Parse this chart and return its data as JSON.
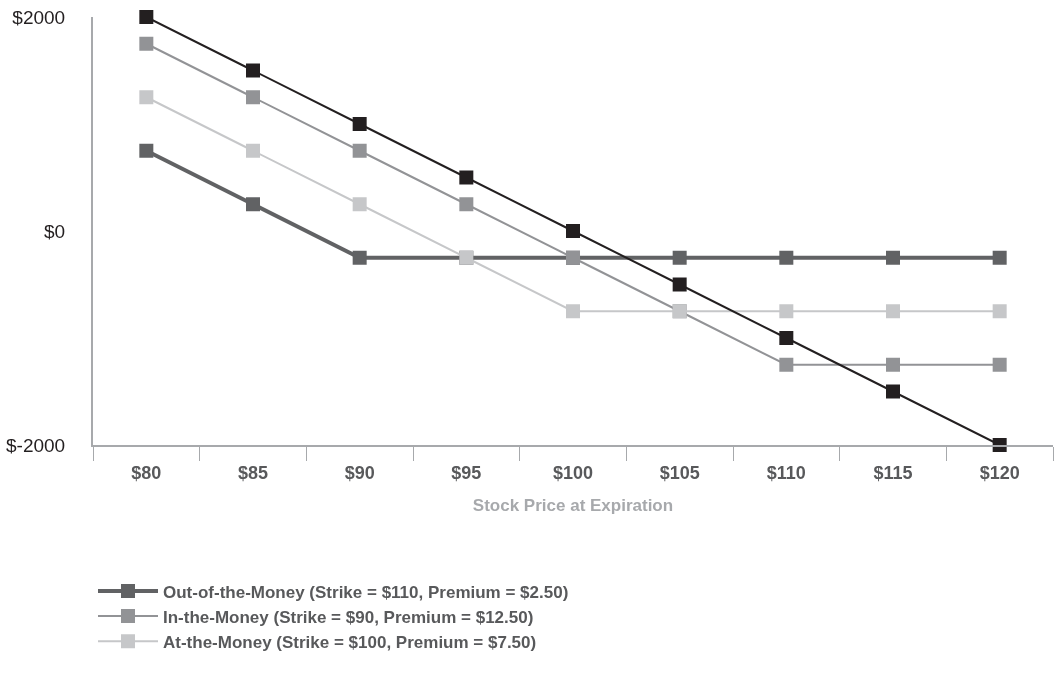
{
  "chart_data": {
    "type": "line",
    "xlabel": "Stock Price at Expiration",
    "categories": [
      "$80",
      "$85",
      "$90",
      "$95",
      "$100",
      "$105",
      "$110",
      "$115",
      "$120"
    ],
    "series": [
      {
        "color": "#231f20",
        "values": [
          2000,
          1500,
          1000,
          500,
          0,
          -500,
          -1000,
          -1500,
          -2000
        ]
      },
      {
        "name": "Out-of-the-Money (Strike = $110, Premium = $2.50)",
        "color": "#616264",
        "values": [
          750,
          250,
          -250,
          -250,
          -250,
          -250,
          -250,
          -250,
          -250
        ]
      },
      {
        "name": "In-the-Money (Strike = $90, Premium = $12.50)",
        "color": "#929396",
        "values": [
          1750,
          1250,
          750,
          250,
          -250,
          -750,
          -1250,
          -1250,
          -1250
        ]
      },
      {
        "name": "At-the-Money (Strike = $100, Premium = $7.50)",
        "color": "#c6c7c9",
        "values": [
          1250,
          750,
          250,
          -250,
          -750,
          -750,
          -750,
          -750,
          -750
        ]
      }
    ],
    "ylim": [
      -2000,
      2000
    ],
    "yticks": [
      {
        "value": -2000,
        "label": "$-2000"
      },
      {
        "value": 0,
        "label": "$0"
      },
      {
        "value": 2000,
        "label": "$2000"
      }
    ],
    "legend": "bottom",
    "marker": "square",
    "line_style": "solid"
  }
}
